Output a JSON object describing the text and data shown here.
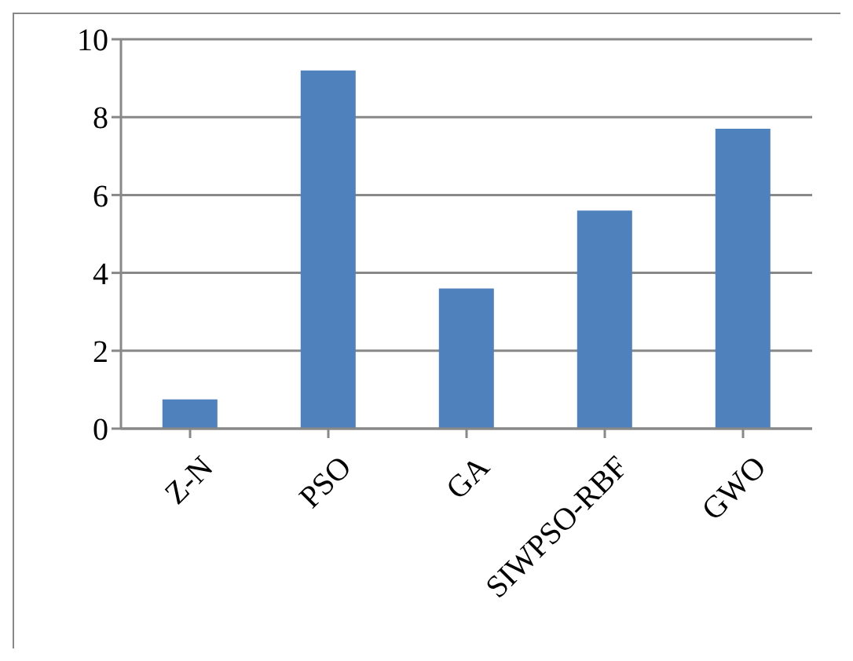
{
  "chart_data": {
    "type": "bar",
    "categories": [
      "Z-N",
      "PSO",
      "GA",
      "SIWPSO-RBF",
      "GWO"
    ],
    "values": [
      0.75,
      9.2,
      3.6,
      5.6,
      7.7
    ],
    "color": "#4f81bd",
    "ylim": [
      0,
      10
    ],
    "yticks": [
      0,
      2,
      4,
      6,
      8,
      10
    ],
    "grid": "y",
    "legend": false
  }
}
